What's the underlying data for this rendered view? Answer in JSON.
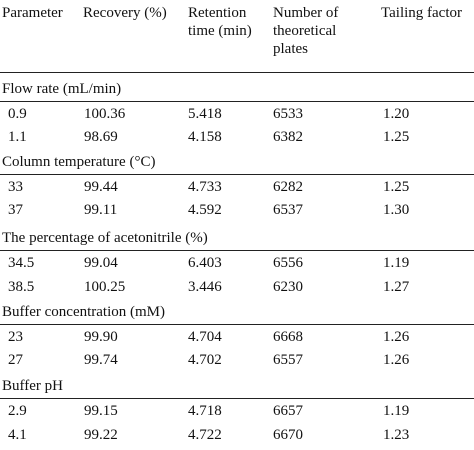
{
  "headers": [
    {
      "lines": [
        "Parameter"
      ]
    },
    {
      "lines": [
        "Recovery (%)"
      ]
    },
    {
      "lines": [
        "Retention",
        "time (min)"
      ]
    },
    {
      "lines": [
        "Number of",
        "theoretical",
        "plates"
      ]
    },
    {
      "lines": [
        "Tailing factor"
      ]
    }
  ],
  "groups": [
    {
      "title": "Flow rate (mL/min)",
      "rows": [
        [
          "0.9",
          "100.36",
          "5.418",
          "6533",
          "1.20"
        ],
        [
          "1.1",
          "98.69",
          "4.158",
          "6382",
          "1.25"
        ]
      ]
    },
    {
      "title": "Column temperature (°C)",
      "rows": [
        [
          "33",
          "99.44",
          "4.733",
          "6282",
          "1.25"
        ],
        [
          "37",
          "99.11",
          "4.592",
          "6537",
          "1.30"
        ]
      ]
    },
    {
      "title": "The percentage of acetonitrile (%)",
      "rows": [
        [
          "34.5",
          "99.04",
          "6.403",
          "6556",
          "1.19"
        ],
        [
          "38.5",
          "100.25",
          "3.446",
          "6230",
          "1.27"
        ]
      ]
    },
    {
      "title": "Buffer concentration (mM)",
      "rows": [
        [
          "23",
          "99.90",
          "4.704",
          "6668",
          "1.26"
        ],
        [
          "27",
          "99.74",
          "4.702",
          "6557",
          "1.26"
        ]
      ]
    },
    {
      "title": "Buffer pH",
      "rows": [
        [
          "2.9",
          "99.15",
          "4.718",
          "6657",
          "1.19"
        ],
        [
          "4.1",
          "99.22",
          "4.722",
          "6670",
          "1.23"
        ]
      ]
    }
  ]
}
